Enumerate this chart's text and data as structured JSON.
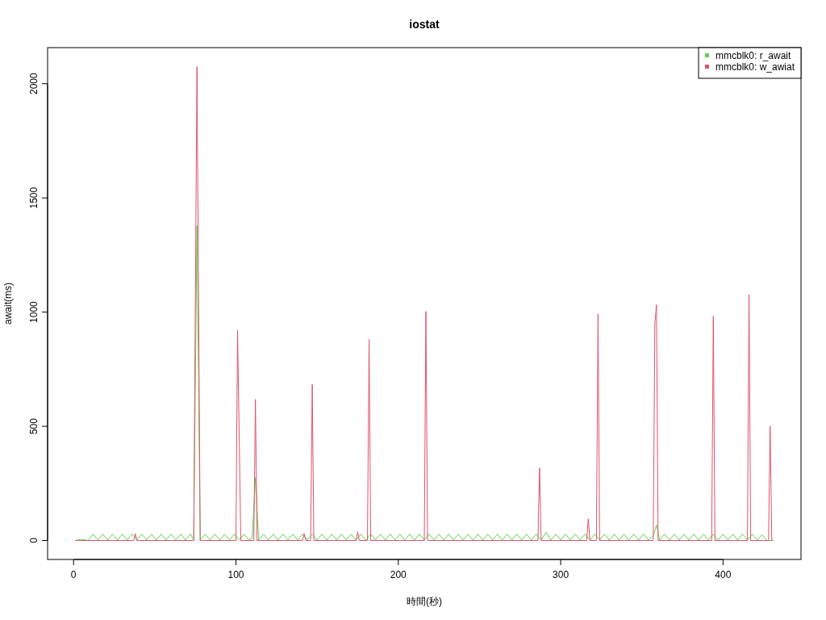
{
  "chart_data": {
    "type": "line",
    "title": "iostat",
    "xlabel": "時間(秒)",
    "ylabel": "await(ms)",
    "xlim": [
      -16,
      448
    ],
    "ylim": [
      -83,
      2158
    ],
    "xticks": [
      0,
      100,
      200,
      300,
      400
    ],
    "yticks": [
      0,
      500,
      1000,
      1500,
      2000
    ],
    "grid": false,
    "legend": "top right",
    "marker": "none",
    "line_style": "solid",
    "series": [
      {
        "name": "mmcblk0: r_await",
        "color": "#61d04f",
        "x": [
          1,
          5,
          9,
          12,
          15,
          18,
          21,
          24,
          27,
          30,
          33,
          36,
          39,
          42,
          45,
          48,
          51,
          54,
          57,
          60,
          63,
          66,
          69,
          72,
          74,
          76,
          78,
          81,
          84,
          87,
          90,
          93,
          96,
          99,
          102,
          105,
          108,
          110,
          112,
          114,
          117,
          120,
          123,
          126,
          129,
          132,
          135,
          138,
          141,
          144,
          147,
          150,
          153,
          156,
          159,
          162,
          165,
          168,
          171,
          174,
          177,
          180,
          183,
          186,
          189,
          192,
          195,
          198,
          201,
          204,
          207,
          210,
          213,
          216,
          219,
          222,
          225,
          228,
          231,
          234,
          237,
          240,
          243,
          246,
          249,
          252,
          255,
          258,
          261,
          264,
          267,
          270,
          273,
          276,
          279,
          282,
          285,
          288,
          291,
          294,
          297,
          300,
          303,
          306,
          309,
          312,
          315,
          318,
          321,
          324,
          327,
          330,
          333,
          336,
          339,
          342,
          345,
          348,
          351,
          354,
          357,
          359,
          361,
          364,
          367,
          370,
          373,
          376,
          379,
          382,
          385,
          388,
          391,
          394,
          397,
          400,
          403,
          406,
          409,
          412,
          415,
          418,
          421,
          424,
          427,
          431
        ],
        "values": [
          0,
          5,
          0,
          28,
          2,
          28,
          2,
          28,
          2,
          28,
          2,
          28,
          2,
          28,
          2,
          28,
          2,
          28,
          2,
          28,
          2,
          28,
          2,
          28,
          2,
          1378,
          2,
          28,
          2,
          28,
          2,
          28,
          2,
          28,
          2,
          28,
          2,
          10,
          275,
          2,
          28,
          2,
          28,
          2,
          28,
          2,
          28,
          2,
          28,
          2,
          28,
          2,
          28,
          2,
          28,
          2,
          28,
          2,
          28,
          2,
          28,
          2,
          28,
          2,
          28,
          2,
          28,
          2,
          28,
          2,
          28,
          2,
          28,
          2,
          28,
          2,
          28,
          2,
          28,
          2,
          28,
          2,
          28,
          2,
          28,
          2,
          28,
          2,
          28,
          2,
          28,
          2,
          28,
          2,
          28,
          2,
          28,
          2,
          35,
          2,
          28,
          2,
          28,
          2,
          28,
          2,
          28,
          2,
          28,
          2,
          28,
          2,
          28,
          2,
          28,
          2,
          28,
          2,
          28,
          2,
          20,
          68,
          2,
          28,
          2,
          28,
          2,
          28,
          2,
          28,
          2,
          28,
          2,
          28,
          2,
          28,
          2,
          28,
          2,
          28,
          2,
          28,
          2,
          25,
          0,
          0
        ]
      },
      {
        "name": "mmcblk0: w_awiat",
        "color": "#df536b",
        "x": [
          1,
          37,
          38,
          39,
          74,
          76,
          78,
          100,
          101,
          103,
          111,
          112,
          113,
          141,
          142,
          143,
          146,
          147,
          148,
          174,
          175,
          176,
          181,
          182,
          183,
          216,
          217,
          218,
          286,
          287,
          288,
          316,
          317,
          318,
          322,
          323,
          324,
          357,
          358,
          359,
          360,
          393,
          394,
          395,
          415,
          416,
          417,
          428,
          429,
          430,
          431
        ],
        "values": [
          0,
          0,
          30,
          0,
          0,
          2075,
          0,
          0,
          920,
          0,
          0,
          618,
          0,
          0,
          30,
          0,
          0,
          683,
          0,
          0,
          38,
          0,
          0,
          880,
          0,
          0,
          1003,
          0,
          0,
          318,
          0,
          0,
          95,
          0,
          0,
          992,
          0,
          0,
          950,
          1032,
          0,
          0,
          982,
          0,
          0,
          1077,
          0,
          0,
          500,
          0,
          0
        ]
      }
    ]
  }
}
